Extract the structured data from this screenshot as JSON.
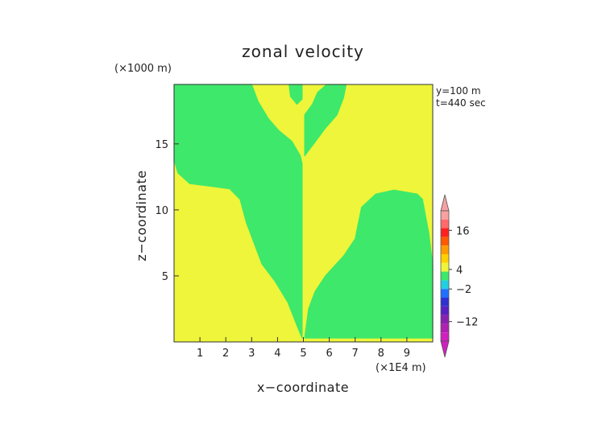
{
  "chart_data": {
    "type": "heatmap",
    "title": "zonal velocity",
    "xlabel": "x−coordinate",
    "ylabel": "z−coordinate",
    "x_unit": "(×1E4 m)",
    "y_unit": "(×1000 m)",
    "annotations": [
      "y=100 m",
      "t=440 sec"
    ],
    "xlim": [
      0,
      10
    ],
    "ylim": [
      0,
      19.5
    ],
    "x_ticks": [
      1,
      2,
      3,
      4,
      5,
      6,
      7,
      8,
      9
    ],
    "y_ticks": [
      5,
      10,
      15
    ],
    "grid": false,
    "colorbar": {
      "labels": [
        "16",
        "4",
        "−2",
        "−12"
      ],
      "label_values": [
        16,
        4,
        -2,
        -12
      ],
      "colors": [
        "#f7a0a0",
        "#ff6a6a",
        "#ff2020",
        "#ff5a00",
        "#ff9a00",
        "#ffd000",
        "#eef53a",
        "#3ee86a",
        "#20d0e0",
        "#2070ff",
        "#3030d0",
        "#5a20c0",
        "#8a20b0",
        "#b020b0",
        "#d020c0"
      ]
    },
    "fill_colors": {
      "positive": "#eef53a",
      "negative": "#3ee86a"
    },
    "regions": [
      {
        "name": "negative-left-column",
        "value_range": [
          -2,
          0
        ],
        "points": [
          [
            0,
            19.5
          ],
          [
            3.0,
            19.5
          ],
          [
            3.0,
            19.5
          ],
          [
            3.25,
            18.2
          ],
          [
            3.65,
            16.9
          ],
          [
            4.05,
            16.0
          ],
          [
            4.55,
            15.2
          ],
          [
            4.88,
            14.1
          ],
          [
            4.95,
            13.5
          ],
          [
            4.95,
            0.3
          ],
          [
            4.8,
            1.0
          ],
          [
            4.4,
            3.0
          ],
          [
            3.9,
            4.6
          ],
          [
            3.4,
            5.9
          ],
          [
            2.8,
            9.0
          ],
          [
            2.55,
            10.8
          ],
          [
            2.15,
            11.6
          ],
          [
            1.4,
            11.8
          ],
          [
            0.6,
            12.0
          ],
          [
            0.15,
            12.8
          ],
          [
            0,
            13.8
          ]
        ]
      },
      {
        "name": "negative-right-region",
        "value_range": [
          -2,
          0
        ],
        "points": [
          [
            5.05,
            0.3
          ],
          [
            10.0,
            0.3
          ],
          [
            10.0,
            5.8
          ],
          [
            9.85,
            8.2
          ],
          [
            9.6,
            10.8
          ],
          [
            9.4,
            11.2
          ],
          [
            8.5,
            11.5
          ],
          [
            7.8,
            11.2
          ],
          [
            7.25,
            10.2
          ],
          [
            7.0,
            7.8
          ],
          [
            6.55,
            6.5
          ],
          [
            5.85,
            5.0
          ],
          [
            5.45,
            3.8
          ],
          [
            5.2,
            2.5
          ]
        ]
      },
      {
        "name": "negative-upper-arm",
        "value_range": [
          -2,
          0
        ],
        "points": [
          [
            5.05,
            14.1
          ],
          [
            5.05,
            17.2
          ],
          [
            5.35,
            18.0
          ],
          [
            5.55,
            18.9
          ],
          [
            5.9,
            19.5
          ],
          [
            6.65,
            19.5
          ],
          [
            6.55,
            18.5
          ],
          [
            6.3,
            17.2
          ],
          [
            5.85,
            16.2
          ],
          [
            5.4,
            15.0
          ]
        ]
      },
      {
        "name": "negative-top-spike",
        "value_range": [
          -2,
          0
        ],
        "points": [
          [
            4.45,
            19.5
          ],
          [
            4.95,
            19.5
          ],
          [
            4.95,
            18.4
          ],
          [
            4.75,
            18.0
          ],
          [
            4.5,
            18.6
          ]
        ]
      }
    ]
  }
}
